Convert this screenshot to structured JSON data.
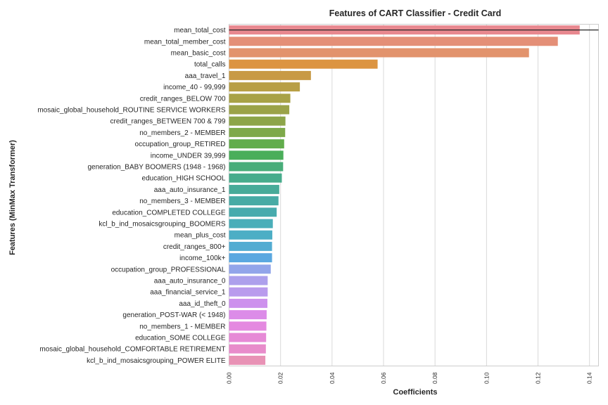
{
  "chart_data": {
    "type": "bar",
    "orientation": "horizontal",
    "title": "Features of CART Classifier - Credit Card",
    "xlabel": "Coefficients",
    "ylabel": "Features (MinMax Transformer)",
    "xlim": [
      0,
      0.1435
    ],
    "x_ticks": [
      "0.00",
      "0.02",
      "0.04",
      "0.06",
      "0.08",
      "0.10",
      "0.12",
      "0.14"
    ],
    "grid": "vertical",
    "reference_line": 0.1435,
    "categories": [
      "mean_total_cost",
      "mean_total_member_cost",
      "mean_basic_cost",
      "total_calls",
      "aaa_travel_1",
      "income_40 - 99,999",
      "credit_ranges_BELOW 700",
      "mosaic_global_household_ROUTINE SERVICE WORKERS",
      "credit_ranges_BETWEEN 700 & 799",
      "no_members_2 - MEMBER",
      "occupation_group_RETIRED",
      "income_UNDER 39,999",
      "generation_BABY BOOMERS (1948 - 1968)",
      "education_HIGH SCHOOL",
      "aaa_auto_insurance_1",
      "no_members_3 - MEMBER",
      "education_COMPLETED COLLEGE",
      "kcl_b_ind_mosaicsgrouping_BOOMERS",
      "mean_plus_cost",
      "credit_ranges_800+",
      "income_100k+",
      "occupation_group_PROFESSIONAL",
      "aaa_auto_insurance_0",
      "aaa_financial_service_1",
      "aaa_id_theft_0",
      "generation_POST-WAR (< 1948)",
      "no_members_1 - MEMBER",
      "education_SOME COLLEGE",
      "mosaic_global_household_COMFORTABLE RETIREMENT",
      "kcl_b_ind_mosaicsgrouping_POWER ELITE"
    ],
    "values": [
      0.1362,
      0.1277,
      0.1165,
      0.0577,
      0.0318,
      0.0275,
      0.0238,
      0.0234,
      0.0219,
      0.0218,
      0.0214,
      0.0211,
      0.021,
      0.0205,
      0.0195,
      0.0192,
      0.0185,
      0.017,
      0.0168,
      0.0167,
      0.0167,
      0.0162,
      0.015,
      0.015,
      0.0149,
      0.0146,
      0.0145,
      0.0144,
      0.0143,
      0.0141
    ],
    "colors": [
      "#e8888f",
      "#e48f77",
      "#e2936d",
      "#dc9441",
      "#c89a45",
      "#b89f45",
      "#a8a246",
      "#9ba348",
      "#8da549",
      "#7ea94a",
      "#62ad4c",
      "#4aae5a",
      "#48ad7a",
      "#47ac8c",
      "#47ab99",
      "#47aba5",
      "#47abad",
      "#49aeb9",
      "#4caec5",
      "#52acd2",
      "#5aa8e0",
      "#92a5ea",
      "#ada0ec",
      "#b99bed",
      "#cd91ed",
      "#dc8ce8",
      "#e489e0",
      "#e68ad6",
      "#e88ccb",
      "#e892b5"
    ]
  }
}
